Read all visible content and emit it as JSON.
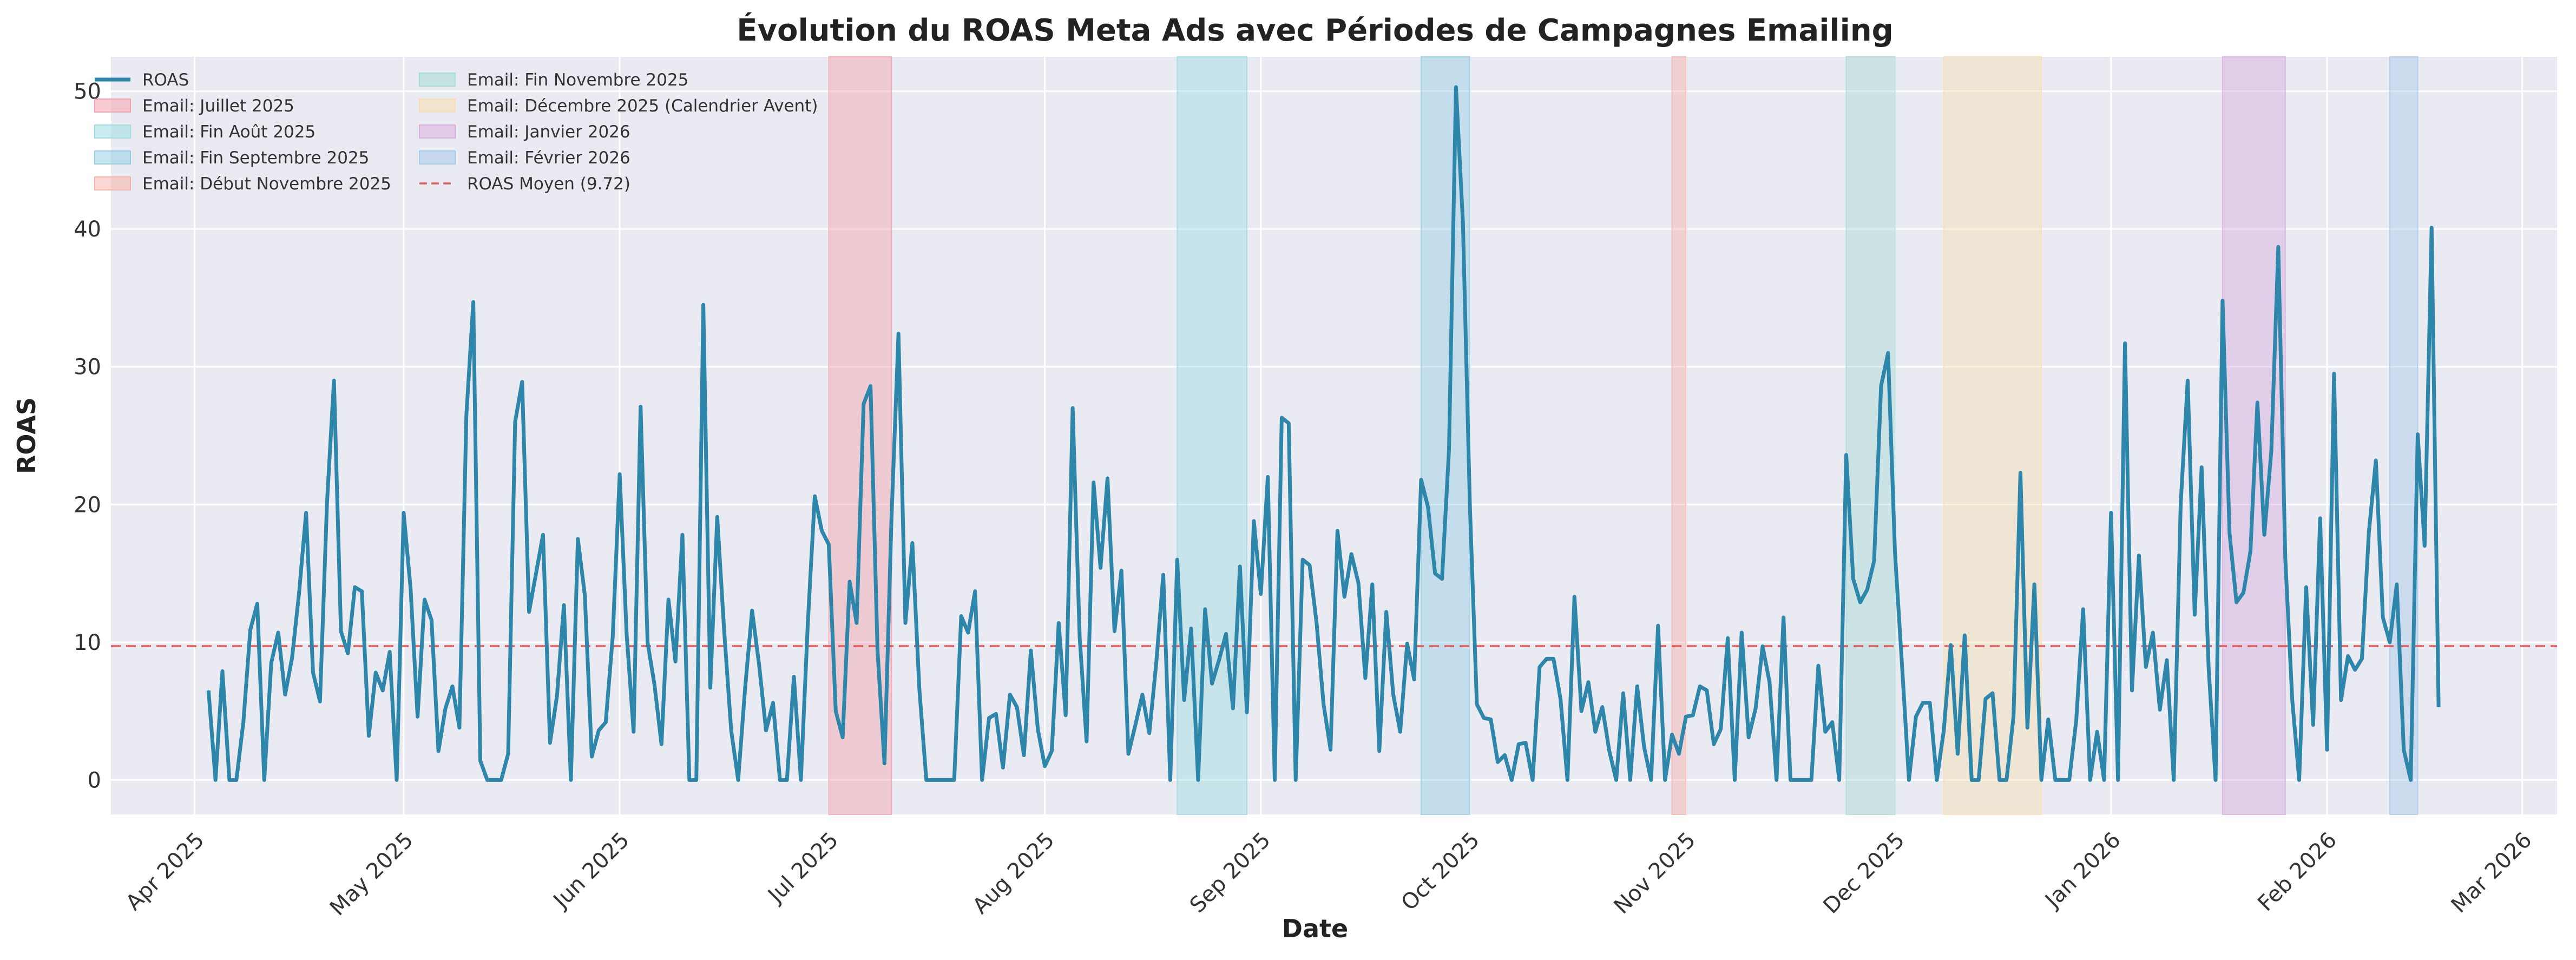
{
  "chart_data": {
    "type": "line",
    "title": "Évolution du ROAS Meta Ads avec Périodes de Campagnes Emailing",
    "xlabel": "Date",
    "ylabel": "ROAS",
    "x_start": "2025-04-03",
    "xlim": [
      "2025-03-20",
      "2026-03-06"
    ],
    "ylim": [
      -2.5,
      52.5
    ],
    "yticks": [
      0,
      10,
      20,
      30,
      40,
      50
    ],
    "xticks": [
      {
        "date": "2025-04-01",
        "label": "Apr 2025"
      },
      {
        "date": "2025-05-01",
        "label": "May 2025"
      },
      {
        "date": "2025-06-01",
        "label": "Jun 2025"
      },
      {
        "date": "2025-07-01",
        "label": "Jul 2025"
      },
      {
        "date": "2025-08-01",
        "label": "Aug 2025"
      },
      {
        "date": "2025-09-01",
        "label": "Sep 2025"
      },
      {
        "date": "2025-10-01",
        "label": "Oct 2025"
      },
      {
        "date": "2025-11-01",
        "label": "Nov 2025"
      },
      {
        "date": "2025-12-01",
        "label": "Dec 2025"
      },
      {
        "date": "2026-01-01",
        "label": "Jan 2026"
      },
      {
        "date": "2026-02-01",
        "label": "Feb 2026"
      },
      {
        "date": "2026-03-01",
        "label": "Mar 2026"
      }
    ],
    "grid": true,
    "legend_position": "top-left",
    "series": [
      {
        "name": "ROAS",
        "color": "#2e86ab",
        "values": [
          6.5,
          0,
          7.9,
          0,
          0,
          4.2,
          10.9,
          12.8,
          0,
          8.5,
          10.7,
          6.2,
          8.9,
          13.6,
          19.4,
          7.8,
          5.7,
          20.1,
          29,
          10.8,
          9.2,
          14,
          13.7,
          3.2,
          7.8,
          6.5,
          9.3,
          0,
          19.4,
          13.9,
          4.6,
          13.1,
          11.6,
          2.1,
          5.2,
          6.8,
          3.8,
          26.5,
          34.7,
          1.4,
          0,
          0,
          0,
          1.9,
          26,
          28.9,
          12.2,
          15,
          17.8,
          2.7,
          6.1,
          12.7,
          0,
          17.5,
          13.4,
          1.7,
          3.6,
          4.2,
          10.4,
          22.2,
          10.6,
          3.5,
          27.1,
          10,
          6.9,
          2.6,
          13.1,
          8.6,
          17.8,
          0,
          0,
          34.5,
          6.7,
          19.1,
          10.8,
          3.6,
          0,
          6.7,
          12.3,
          8.4,
          3.6,
          5.6,
          0,
          0,
          7.5,
          0,
          11.4,
          20.6,
          18.1,
          17.1,
          5,
          3.1,
          14.4,
          11.4,
          27.3,
          28.6,
          9.4,
          1.2,
          19,
          32.4,
          11.4,
          17.2,
          6.6,
          0,
          0,
          0,
          0,
          0,
          11.9,
          10.7,
          13.7,
          0,
          4.5,
          4.8,
          0.9,
          6.2,
          5.3,
          1.8,
          9.4,
          3.7,
          1,
          2.1,
          11.4,
          4.7,
          27,
          10.4,
          2.8,
          21.6,
          15.4,
          21.9,
          10.8,
          15.2,
          1.9,
          4,
          6.2,
          3.4,
          8.5,
          14.9,
          0,
          16,
          5.8,
          11,
          0,
          12.4,
          7,
          8.7,
          10.6,
          5.2,
          15.5,
          4.9,
          18.8,
          13.5,
          22,
          0,
          26.3,
          25.9,
          0,
          16,
          15.6,
          11.4,
          5.5,
          2.2,
          18.1,
          13.3,
          16.4,
          14.3,
          7.4,
          14.2,
          2.1,
          12.2,
          6.2,
          3.5,
          9.9,
          7.3,
          21.8,
          19.8,
          15,
          14.6,
          24,
          50.3,
          40.5,
          19.9,
          5.5,
          4.5,
          4.4,
          1.3,
          1.8,
          0,
          2.6,
          2.7,
          0,
          8.2,
          8.8,
          8.8,
          5.9,
          0,
          13.3,
          5,
          7.1,
          3.5,
          5.3,
          2.1,
          0,
          6.3,
          0,
          6.8,
          2.4,
          0,
          11.2,
          0,
          3.3,
          1.9,
          4.6,
          4.7,
          6.8,
          6.5,
          2.6,
          3.7,
          10.3,
          0,
          10.7,
          3.1,
          5.2,
          9.7,
          7.1,
          0,
          11.8,
          0,
          0,
          0,
          0,
          8.3,
          3.5,
          4.2,
          0,
          23.6,
          14.6,
          12.9,
          13.8,
          15.9,
          28.6,
          31,
          16.5,
          8.4,
          0,
          4.6,
          5.6,
          5.6,
          0,
          3.6,
          9.8,
          1.9,
          10.5,
          0,
          0,
          5.9,
          6.3,
          0,
          0,
          4.6,
          22.3,
          3.8,
          14.2,
          0,
          4.4,
          0,
          0,
          0,
          4.3,
          12.4,
          0,
          3.5,
          0,
          19.4,
          0,
          31.7,
          6.5,
          16.3,
          8.2,
          10.7,
          5.1,
          8.7,
          0,
          20.1,
          29,
          12,
          22.7,
          8.2,
          0,
          34.8,
          17.9,
          12.9,
          13.6,
          16.6,
          27.4,
          17.8,
          23.9,
          38.7,
          16.1,
          5.8,
          0,
          14,
          4,
          19,
          2.2,
          29.5,
          5.8,
          9,
          8,
          8.8,
          18,
          23.2,
          11.8,
          10,
          14.2,
          2.2,
          0,
          25.1,
          17,
          40.1,
          5.3
        ]
      }
    ],
    "mean_line": {
      "value": 9.72,
      "label": "ROAS Moyen (9.72)",
      "color": "#e55b5b"
    },
    "email_periods": [
      {
        "label": "Email: Juillet 2025",
        "start": "2025-07-01",
        "end": "2025-07-10",
        "color": "#f4a3ae"
      },
      {
        "label": "Email: Fin Août 2025",
        "start": "2025-08-20",
        "end": "2025-08-30",
        "color": "#9fdde3"
      },
      {
        "label": "Email: Fin Septembre 2025",
        "start": "2025-09-24",
        "end": "2025-10-01",
        "color": "#96cfe4"
      },
      {
        "label": "Email: Début Novembre 2025",
        "start": "2025-10-30",
        "end": "2025-11-01",
        "color": "#f7b4ad"
      },
      {
        "label": "Email: Fin Novembre 2025",
        "start": "2025-11-24",
        "end": "2025-12-01",
        "color": "#a8dcd8"
      },
      {
        "label": "Email: Décembre 2025 (Calendrier Avent)",
        "start": "2025-12-08",
        "end": "2025-12-22",
        "color": "#f6dfb0"
      },
      {
        "label": "Email: Janvier 2026",
        "start": "2026-01-17",
        "end": "2026-01-26",
        "color": "#d8b0e0"
      },
      {
        "label": "Email: Février 2026",
        "start": "2026-02-10",
        "end": "2026-02-14",
        "color": "#a9cbe8"
      }
    ],
    "legend": [
      "ROAS",
      "Email: Juillet 2025",
      "Email: Fin Août 2025",
      "Email: Fin Septembre 2025",
      "Email: Début Novembre 2025",
      "Email: Fin Novembre 2025",
      "Email: Décembre 2025 (Calendrier Avent)",
      "Email: Janvier 2026",
      "Email: Février 2026",
      "ROAS Moyen (9.72)"
    ]
  }
}
